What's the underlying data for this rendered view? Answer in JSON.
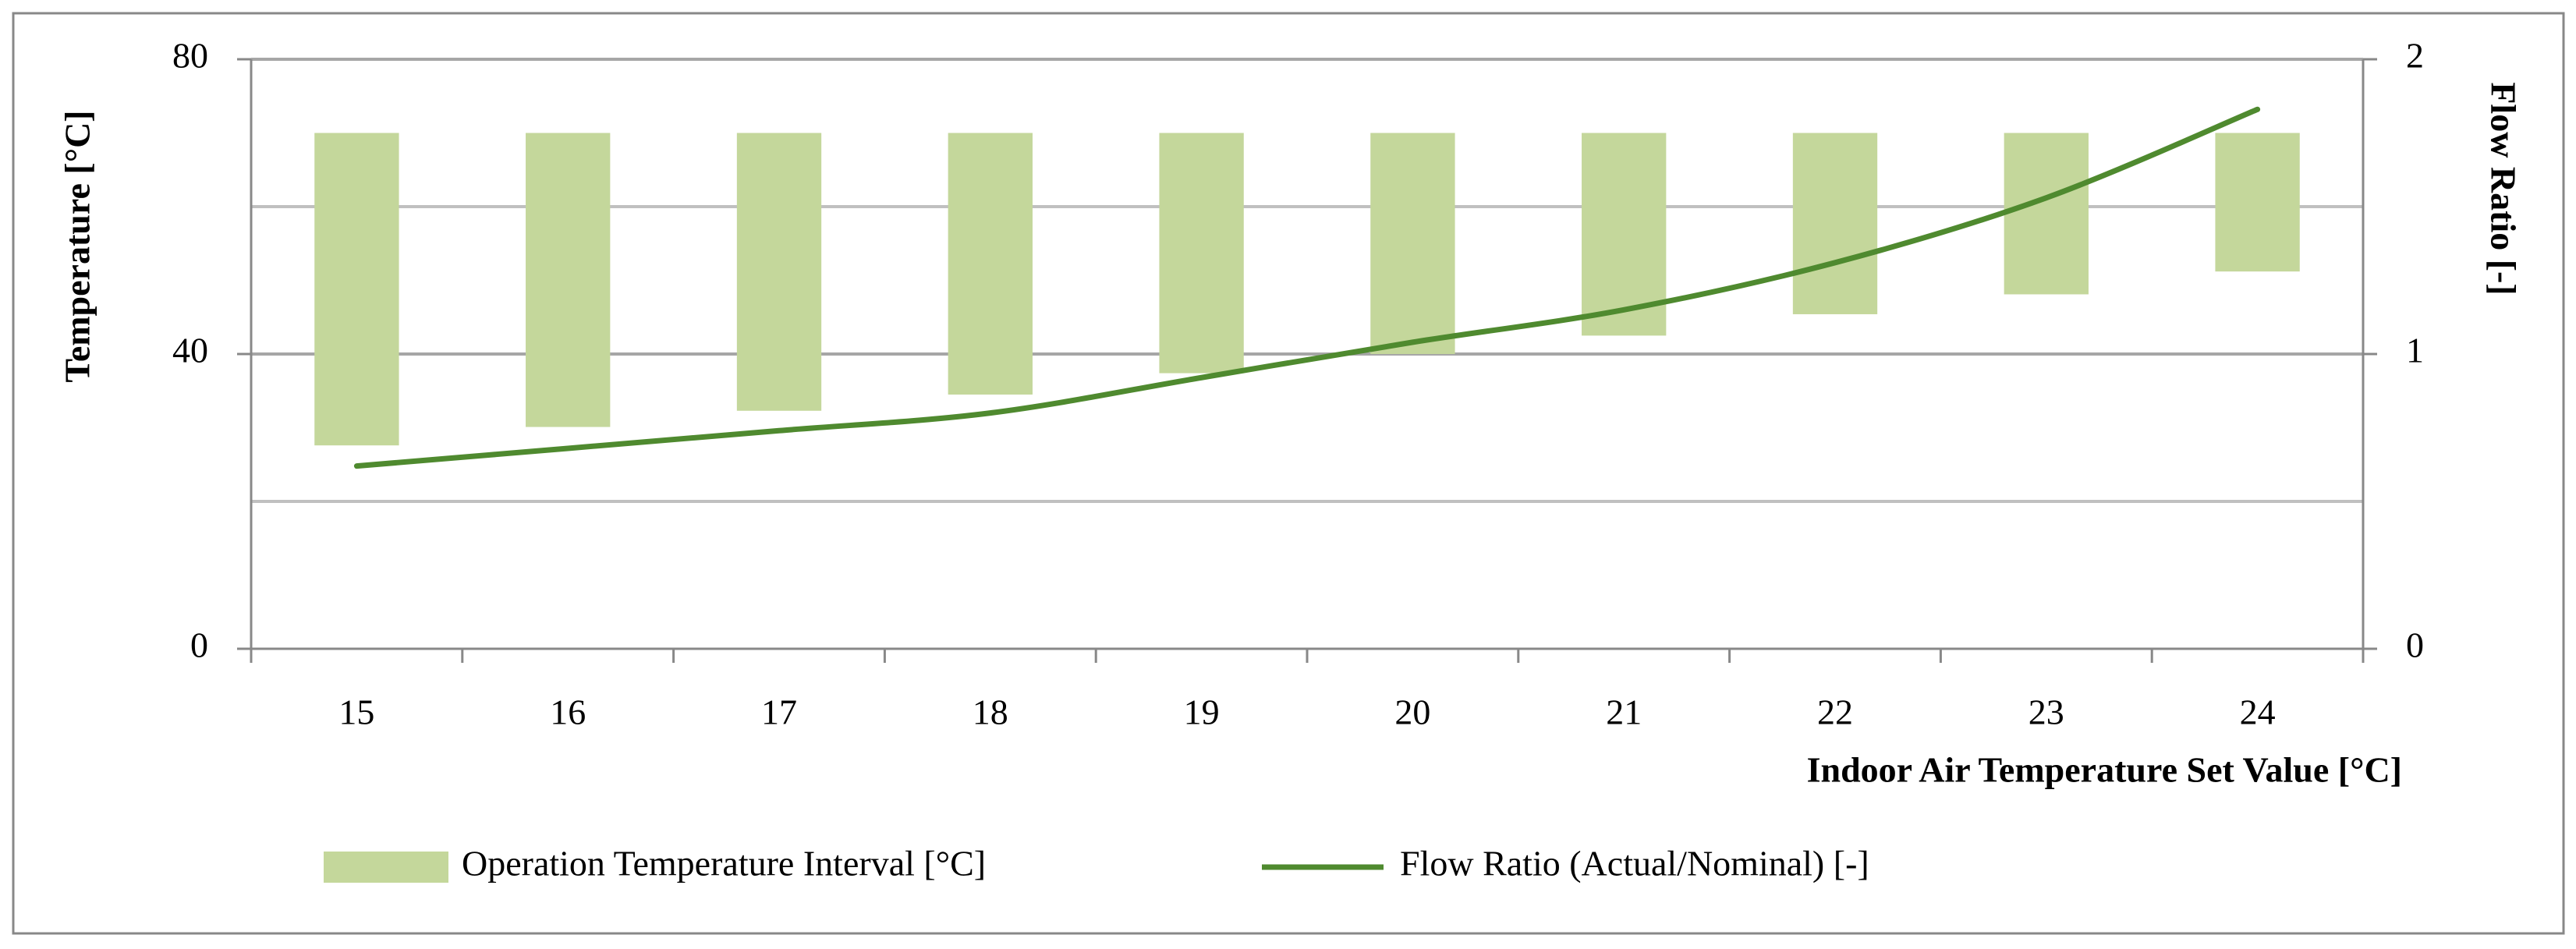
{
  "chart_data": {
    "type": "combo",
    "x_label": "Indoor Air Temperature Set Value [°C]",
    "y_label": "Temperature [°C]",
    "y2_label": "Flow Ratio [-]",
    "categories": [
      "15",
      "16",
      "17",
      "18",
      "19",
      "20",
      "21",
      "22",
      "23",
      "24"
    ],
    "series": [
      {
        "name": "Operation Temperature Interval [°C]",
        "type": "range",
        "color": "#c4d79b",
        "low": [
          27.6,
          30.1,
          32.3,
          34.5,
          37.4,
          40,
          42.5,
          45.4,
          48.1,
          51.2
        ],
        "high": [
          70,
          70,
          70,
          70,
          70,
          70,
          70,
          70,
          70,
          70
        ]
      },
      {
        "name": "Flow Ratio (Actual/Nominal) [-]",
        "type": "line",
        "axis": "y2",
        "color": "#4f8a2f",
        "values": [
          0.62,
          0.68,
          0.74,
          0.8,
          0.92,
          1.04,
          1.15,
          1.31,
          1.53,
          1.83
        ]
      }
    ],
    "ylim": [
      0,
      80
    ],
    "yticks": [
      0,
      40,
      80
    ],
    "grid_lines": [
      20,
      40,
      60,
      80
    ],
    "y2lim": [
      0,
      2
    ],
    "y2ticks": [
      0,
      1,
      2
    ]
  }
}
